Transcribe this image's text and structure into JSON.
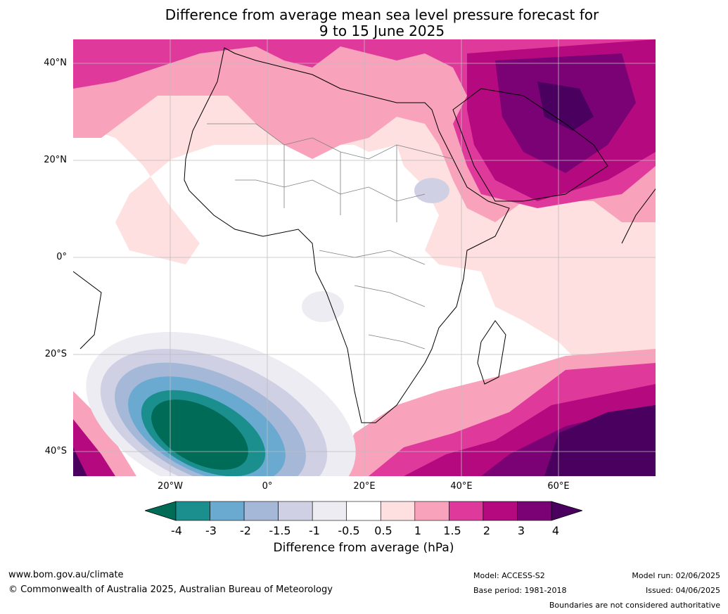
{
  "title_line1": "Difference from average mean sea level pressure forecast for",
  "title_line2": "9 to 15 June 2025",
  "lat_labels": [
    "40°N",
    "20°N",
    "0°",
    "20°S",
    "40°S"
  ],
  "lon_labels": [
    "20°W",
    "0°",
    "20°E",
    "40°E",
    "60°E"
  ],
  "colorbar": {
    "ticks": [
      "-4",
      "-3",
      "-2",
      "-1.5",
      "-1",
      "-0.5",
      "0.5",
      "1",
      "1.5",
      "2",
      "3",
      "4"
    ],
    "label": "Difference from average (hPa)",
    "colors": [
      "#1b8e8e",
      "#6aaad1",
      "#a6b8d8",
      "#cfd0e4",
      "#eeecf3",
      "#ffffff",
      "#fde0df",
      "#f9a2bb",
      "#e0399c",
      "#b5097f",
      "#7b0274"
    ],
    "under_color": "#006b57",
    "over_color": "#49005f"
  },
  "footer": {
    "website": "www.bom.gov.au/climate",
    "copyright": "© Commonwealth of Australia 2025, Australian Bureau of Meteorology",
    "model": "Model: ACCESS-S2",
    "base_period": "Base period: 1981-2018",
    "model_run": "Model run: 02/06/2025",
    "issued": "Issued: 04/06/2025",
    "disclaimer": "Boundaries are not considered authoritative"
  }
}
